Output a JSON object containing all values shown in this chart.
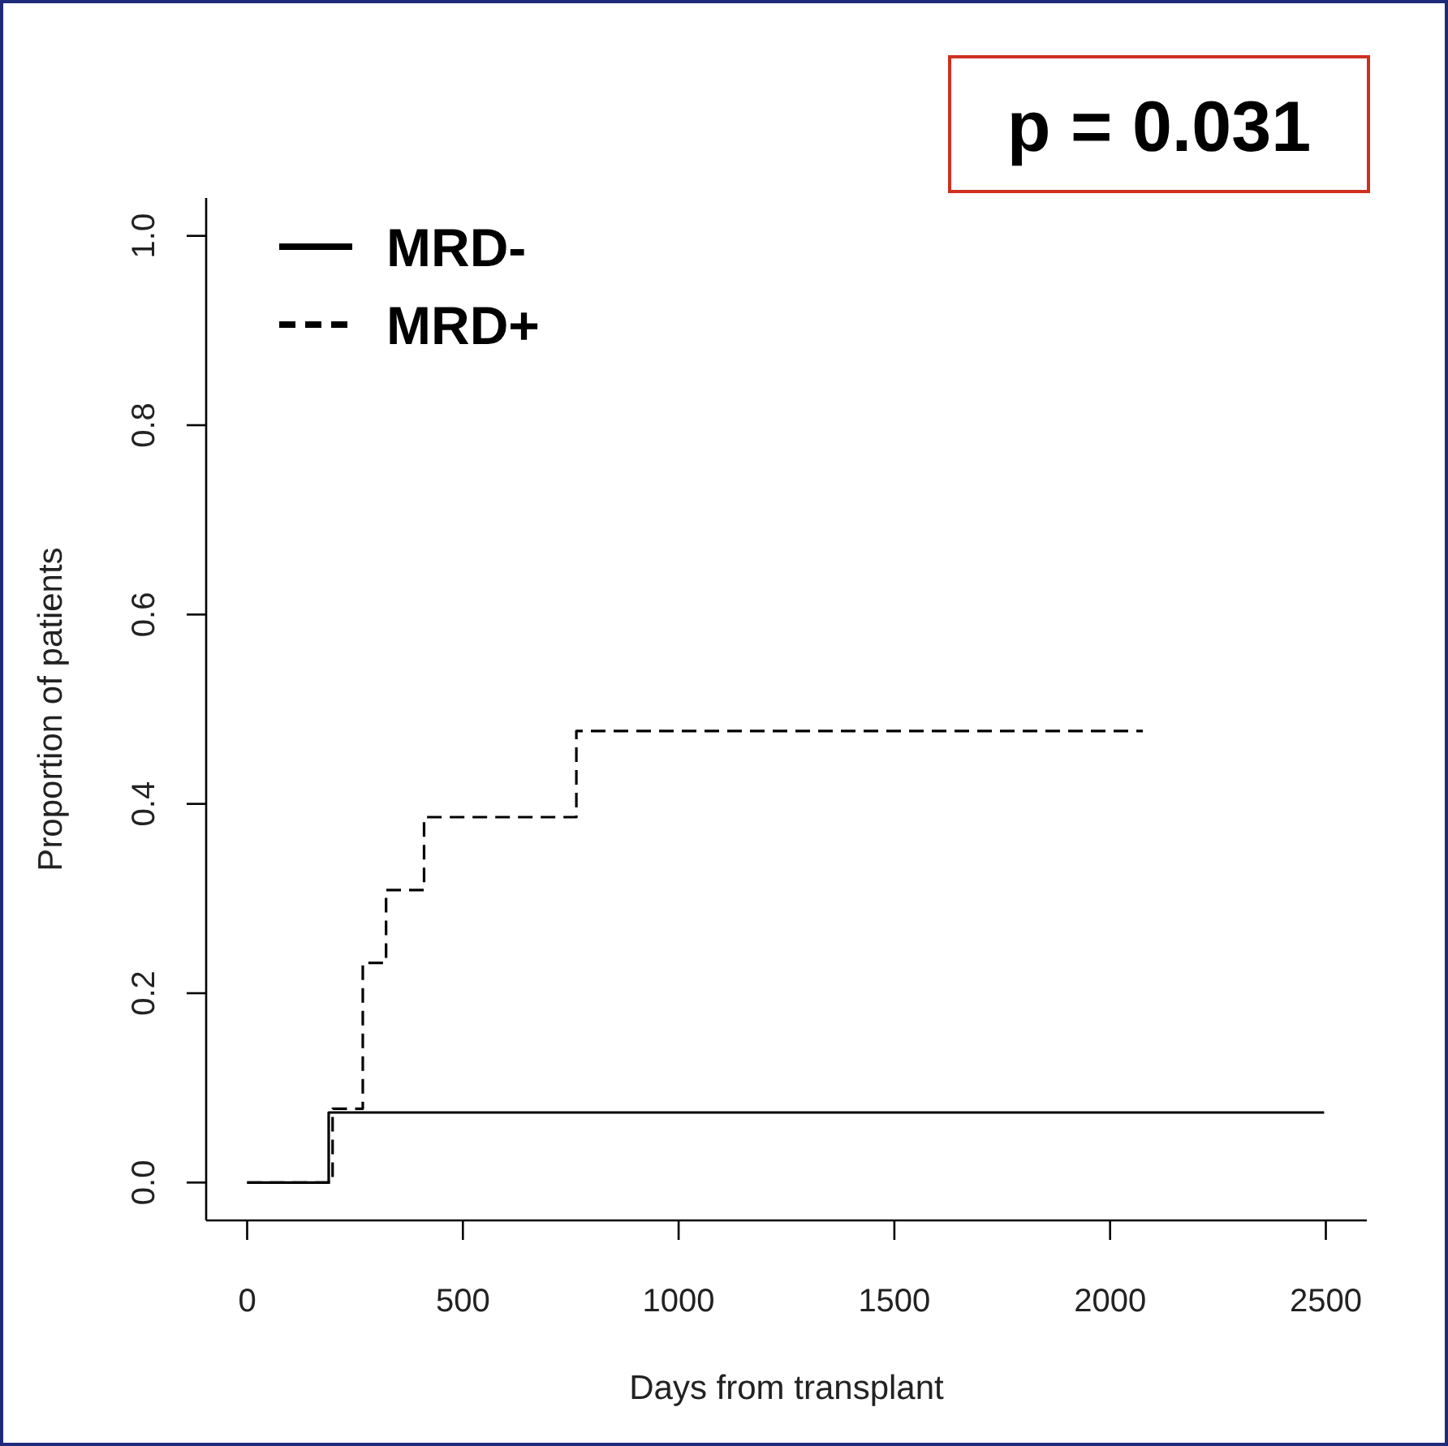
{
  "chart_data": {
    "type": "step",
    "xlabel": "Days from transplant",
    "ylabel": "Proportion of patients",
    "annotations": [
      "p = 0.031"
    ],
    "xlim": [
      -95,
      2595
    ],
    "ylim": [
      -0.04,
      1.04
    ],
    "xticks": [
      0,
      500,
      1000,
      1500,
      2000,
      2500
    ],
    "yticks": [
      {
        "value": 0,
        "label": "0.0"
      },
      {
        "value": 0.2,
        "label": "0.2"
      },
      {
        "value": 0.4,
        "label": "0.4"
      },
      {
        "value": 0.6,
        "label": "0.6"
      },
      {
        "value": 0.8,
        "label": "0.8"
      },
      {
        "value": 1,
        "label": "1.0"
      }
    ],
    "legend": "top left",
    "grid": false,
    "series": [
      {
        "name": "MRD-",
        "color": "#000000",
        "line_style": "solid",
        "x": [
          0,
          189,
          2496
        ],
        "values": [
          0,
          0.074,
          0.074
        ]
      },
      {
        "name": "MRD+",
        "color": "#000000",
        "line_style": "dashed",
        "x": [
          0,
          198,
          268,
          322,
          410,
          763,
          2076
        ],
        "values": [
          0,
          0.078,
          0.232,
          0.309,
          0.386,
          0.477,
          0.477
        ]
      }
    ]
  }
}
